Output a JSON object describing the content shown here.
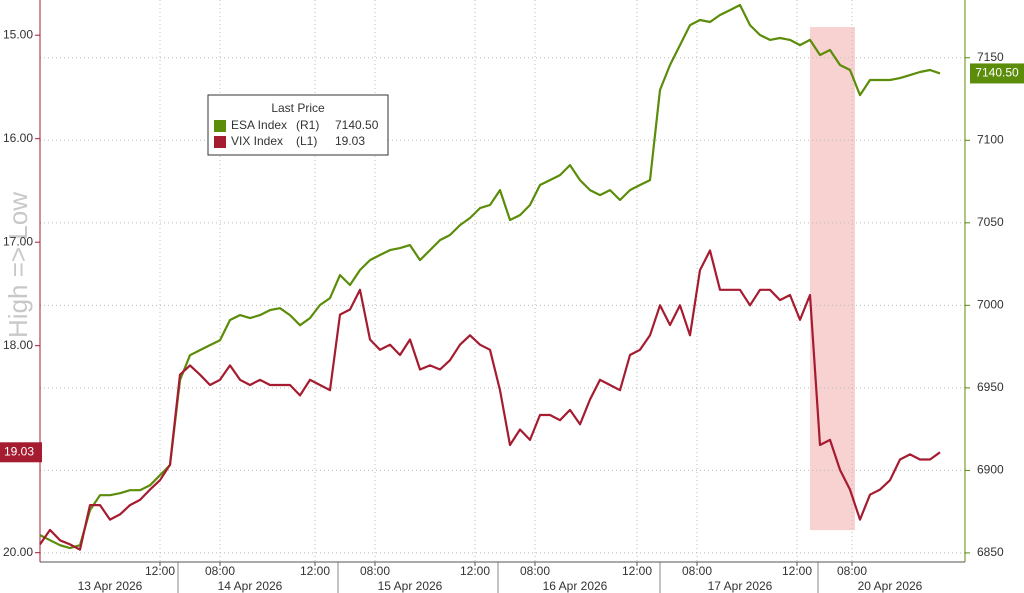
{
  "chart_data": {
    "type": "line",
    "watermark": "High => Low",
    "legend_title": "Last Price",
    "xlim": [
      0,
      92.5
    ],
    "xticks": [
      {
        "value": 12,
        "label": "12:00"
      },
      {
        "value": 18,
        "label": "08:00"
      },
      {
        "value": 27.5,
        "label": "12:00"
      },
      {
        "value": 33.5,
        "label": "08:00"
      },
      {
        "value": 43.5,
        "label": "12:00"
      },
      {
        "value": 49.5,
        "label": "08:00"
      },
      {
        "value": 59.7,
        "label": "12:00"
      },
      {
        "value": 65.7,
        "label": "08:00"
      },
      {
        "value": 75.7,
        "label": "12:00"
      },
      {
        "value": 81.2,
        "label": "08:00"
      }
    ],
    "date_labels": [
      {
        "value": 7,
        "label": "13 Apr 2026"
      },
      {
        "value": 21,
        "label": "14 Apr 2026"
      },
      {
        "value": 37,
        "label": "15 Apr 2026"
      },
      {
        "value": 53.5,
        "label": "16 Apr 2026"
      },
      {
        "value": 70,
        "label": "17 Apr 2026"
      },
      {
        "value": 85,
        "label": "20 Apr 2026"
      }
    ],
    "day_breaks": [
      13.8,
      29.8,
      45.8,
      62,
      77.8
    ],
    "highlight": {
      "xlim": [
        77,
        81.5
      ],
      "y2lim": [
        6863.8,
        7168.6
      ],
      "color": "#f6c6c6"
    },
    "ylim": [
      20.09,
      14.66
    ],
    "yticks": [
      {
        "value": 15,
        "label": "15.00"
      },
      {
        "value": 16,
        "label": "16.00"
      },
      {
        "value": 17,
        "label": "17.00"
      },
      {
        "value": 18,
        "label": "18.00"
      },
      {
        "value": 20,
        "label": "20.00"
      }
    ],
    "y2lim": [
      6844.5,
      7185
    ],
    "y2ticks": [
      6850,
      6900,
      6950,
      7000,
      7050,
      7100,
      7150
    ],
    "grid": true,
    "series": [
      {
        "name": "ESA Index",
        "axis_label": "(R1)",
        "last_label": "7140.50",
        "axis": "y2",
        "color": "#5b8c0a",
        "values": [
          6860.8,
          6857.7,
          6854.7,
          6852.9,
          6854.7,
          6875.9,
          6885,
          6885,
          6886.2,
          6888,
          6888,
          6891,
          6897.1,
          6903.2,
          6954.7,
          6969.8,
          6972.9,
          6975.9,
          6978.9,
          6991.1,
          6994.1,
          6992.3,
          6994.1,
          6997.1,
          6998.3,
          6994.1,
          6988,
          6992.3,
          7000.2,
          7004.4,
          7018.3,
          7012.3,
          7021.4,
          7027.4,
          7030.5,
          7033.5,
          7034.7,
          7036.5,
          7027.4,
          7033.5,
          7039.5,
          7042.6,
          7048.6,
          7052.9,
          7058.9,
          7060.8,
          7069.8,
          7051.7,
          7054.7,
          7060.8,
          7072.9,
          7075.9,
          7078.9,
          7085,
          7075.9,
          7069.8,
          7066.8,
          7069.8,
          7063.8,
          7069.8,
          7072.9,
          7075.9,
          7130.5,
          7145.6,
          7157.7,
          7169.8,
          7172.9,
          7171.7,
          7175.9,
          7178.9,
          7182,
          7169.8,
          7163.8,
          7160.8,
          7162,
          7160.8,
          7157.7,
          7160.8,
          7151.7,
          7154.7,
          7145.6,
          7142.6,
          7127.4,
          7136.5,
          7136.5,
          7136.5,
          7137.7,
          7139.5,
          7141.4,
          7142.6,
          7140.5
        ]
      },
      {
        "name": "VIX Index",
        "axis_label": "(L1)",
        "last_label": "19.03",
        "color": "#a51c30",
        "values": [
          19.92,
          19.78,
          19.88,
          19.92,
          19.97,
          19.54,
          19.54,
          19.68,
          19.63,
          19.54,
          19.49,
          19.39,
          19.3,
          19.15,
          18.28,
          18.19,
          18.28,
          18.38,
          18.33,
          18.19,
          18.33,
          18.38,
          18.33,
          18.38,
          18.38,
          18.38,
          18.48,
          18.33,
          18.38,
          18.43,
          17.7,
          17.65,
          17.46,
          17.94,
          18.04,
          17.99,
          18.09,
          17.94,
          18.23,
          18.19,
          18.23,
          18.14,
          17.99,
          17.9,
          17.99,
          18.04,
          18.43,
          18.96,
          18.81,
          18.91,
          18.67,
          18.67,
          18.72,
          18.62,
          18.76,
          18.52,
          18.33,
          18.38,
          18.43,
          18.09,
          18.04,
          17.9,
          17.61,
          17.8,
          17.61,
          17.9,
          17.27,
          17.08,
          17.46,
          17.46,
          17.46,
          17.61,
          17.46,
          17.46,
          17.56,
          17.51,
          17.75,
          17.51,
          18.96,
          18.91,
          19.2,
          19.39,
          19.68,
          19.44,
          19.39,
          19.3,
          19.1,
          19.05,
          19.1,
          19.1,
          19.03
        ]
      }
    ]
  }
}
